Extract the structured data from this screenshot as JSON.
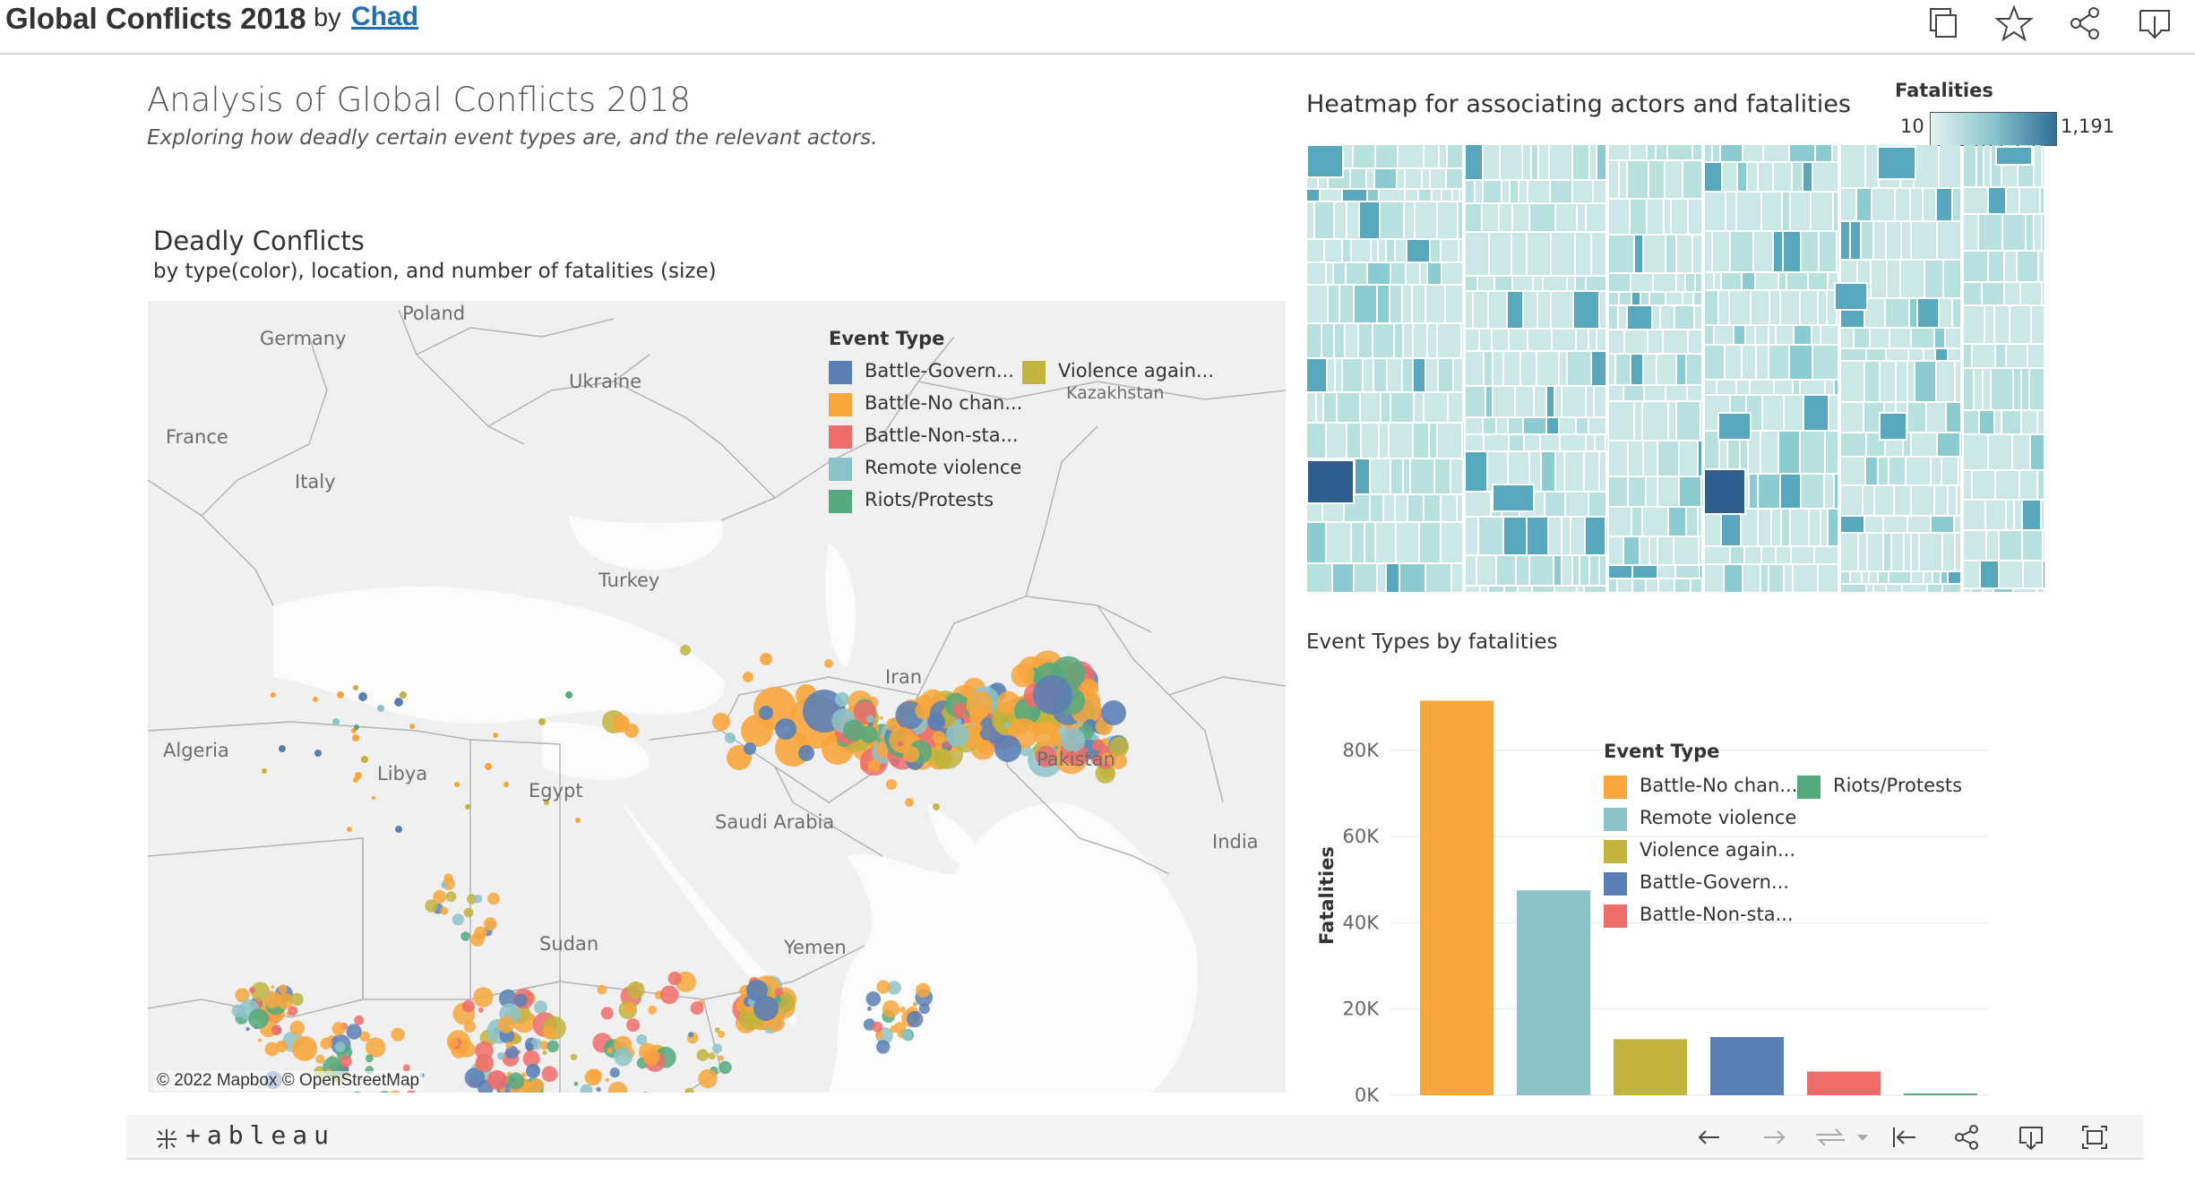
{
  "header": {
    "title": "Global Conflicts 2018",
    "by": "by",
    "author": "Chad",
    "icons": [
      "duplicate-icon",
      "star-icon",
      "share-icon",
      "download-icon"
    ]
  },
  "dashboard": {
    "title": "Analysis of Global Conflicts 2018",
    "subtitle": "Exploring how deadly certain event types are, and the relevant actors."
  },
  "map": {
    "title": "Deadly Conflicts",
    "subtitle": "by type(color), location, and number of fatalities (size)",
    "attribution": "© 2022 Mapbox  © OpenStreetMap",
    "place_labels": [
      "Poland",
      "Germany",
      "Ukraine",
      "Kazakhstan",
      "France",
      "Italy",
      "Turkey",
      "Iran",
      "Algeria",
      "Libya",
      "Egypt",
      "Saudi Arabia",
      "Pakistan",
      "India",
      "Sudan",
      "Yemen"
    ],
    "legend": {
      "title": "Event Type",
      "items": [
        {
          "label": "Battle-Govern...",
          "color": "#5b7fb5"
        },
        {
          "label": "Violence again...",
          "color": "#c2b43e"
        },
        {
          "label": "Battle-No chan...",
          "color": "#f8a63c"
        },
        {
          "label": "Battle-Non-sta...",
          "color": "#ee6d6a"
        },
        {
          "label": "Remote violence",
          "color": "#8dc3c8"
        },
        {
          "label": "Riots/Protests",
          "color": "#55a97e"
        }
      ]
    }
  },
  "heatmap": {
    "title": "Heatmap for associating actors and fatalities",
    "legend_title": "Fatalities",
    "min_label": "10",
    "max_label": "1,191",
    "colors": {
      "low": "#bfe2e0",
      "mid": "#57a7bd",
      "high": "#2f5e8c"
    }
  },
  "bar_chart": {
    "title": "Event Types by fatalities",
    "legend_title": "Event Type",
    "legend": [
      {
        "label": "Battle-No chan...",
        "color": "#f8a63c"
      },
      {
        "label": "Riots/Protests",
        "color": "#55a97e"
      },
      {
        "label": "Remote violence",
        "color": "#8dc3c8"
      },
      {
        "label": "Violence again...",
        "color": "#c2b43e"
      },
      {
        "label": "Battle-Govern...",
        "color": "#5b7fb5"
      },
      {
        "label": "Battle-Non-sta...",
        "color": "#ee6d6a"
      }
    ]
  },
  "chart_data": {
    "type": "bar",
    "ylabel": "Fatalities",
    "xlabel": "",
    "ylim": [
      0,
      92000
    ],
    "yticks": [
      0,
      20000,
      40000,
      60000,
      80000
    ],
    "ytick_labels": [
      "0K",
      "20K",
      "40K",
      "60K",
      "80K"
    ],
    "bars": [
      {
        "category": "Battle-No chan...",
        "value": 91500,
        "color": "#f8a63c"
      },
      {
        "category": "Remote violence",
        "value": 47500,
        "color": "#8dc3c8"
      },
      {
        "category": "Violence again...",
        "value": 13000,
        "color": "#c2b43e"
      },
      {
        "category": "Battle-Govern...",
        "value": 13500,
        "color": "#5b7fb5"
      },
      {
        "category": "Battle-Non-sta...",
        "value": 5500,
        "color": "#ee6d6a"
      },
      {
        "category": "Riots/Protests",
        "value": 400,
        "color": "#55a97e"
      }
    ],
    "legend_position": "top-right"
  },
  "toolbar": {
    "logo": "+ableau",
    "icons": [
      "undo-icon",
      "redo-icon",
      "revert-icon",
      "dropdown-icon",
      "reset-icon",
      "share-icon",
      "download-icon",
      "fullscreen-icon"
    ]
  }
}
